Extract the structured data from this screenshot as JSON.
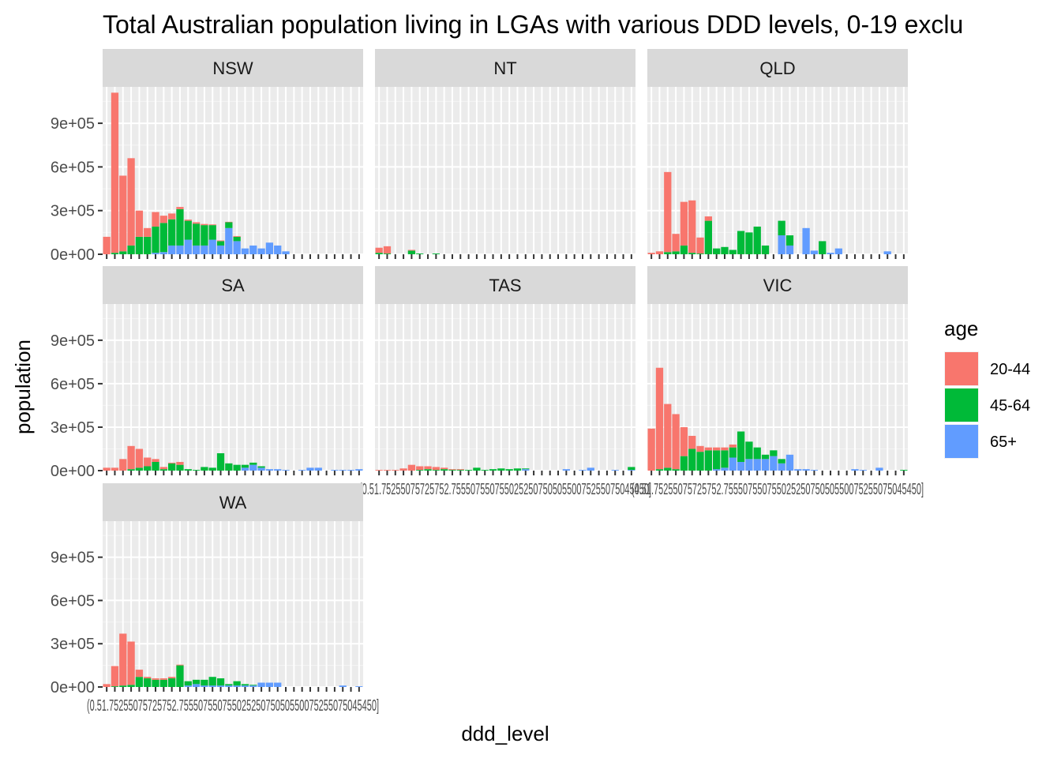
{
  "chart_data": {
    "type": "bar",
    "stacked": true,
    "faceted": true,
    "title": "Total Australian population living in LGAs with various DDD levels, 0-19 exclu",
    "xlabel": "ddd_level",
    "ylabel": "population",
    "y_ticks": [
      "0e+00",
      "3e+05",
      "6e+05",
      "9e+05"
    ],
    "y_tick_values": [
      0,
      300000,
      600000,
      900000
    ],
    "ylim": [
      0,
      1150000
    ],
    "n_categories": 32,
    "x_tick_label_overlap": "(0.51.75255075725752.75550755075502525075050550075255075045450]",
    "legend": {
      "title": "age",
      "position": "right",
      "items": [
        {
          "name": "20-44",
          "color": "#F8766D"
        },
        {
          "name": "45-64",
          "color": "#00BA38"
        },
        {
          "name": "65+",
          "color": "#619CFF"
        }
      ]
    },
    "series_order": [
      "20-44",
      "45-64",
      "65+"
    ],
    "facets": [
      {
        "label": "NSW",
        "values": {
          "20-44": [
            120000,
            1100000,
            520000,
            600000,
            180000,
            60000,
            100000,
            50000,
            40000,
            15000,
            8000,
            10000,
            8000,
            5000,
            5000,
            3000,
            5000,
            0,
            0,
            0,
            0,
            0,
            0,
            0,
            0,
            0,
            0,
            0,
            0,
            0,
            0,
            0
          ],
          "45-64": [
            0,
            10000,
            20000,
            60000,
            120000,
            120000,
            180000,
            200000,
            180000,
            250000,
            130000,
            150000,
            140000,
            100000,
            30000,
            40000,
            30000,
            0,
            0,
            0,
            0,
            0,
            0,
            0,
            0,
            0,
            0,
            0,
            0,
            0,
            0,
            0
          ],
          "65+": [
            0,
            0,
            0,
            0,
            0,
            0,
            10000,
            15000,
            60000,
            60000,
            100000,
            60000,
            60000,
            100000,
            60000,
            180000,
            90000,
            40000,
            60000,
            40000,
            80000,
            60000,
            20000,
            0,
            0,
            0,
            0,
            0,
            0,
            0,
            0,
            0
          ]
        }
      },
      {
        "label": "NT",
        "values": {
          "20-44": [
            35000,
            50000,
            0,
            0,
            5000,
            0,
            0,
            0,
            0,
            0,
            0,
            0,
            0,
            0,
            0,
            0,
            0,
            0,
            0,
            0,
            0,
            0,
            0,
            0,
            0,
            0,
            0,
            0,
            0,
            0,
            0,
            0
          ],
          "45-64": [
            10000,
            5000,
            0,
            0,
            25000,
            5000,
            0,
            5000,
            0,
            0,
            0,
            0,
            0,
            0,
            0,
            0,
            0,
            0,
            0,
            0,
            0,
            0,
            0,
            0,
            0,
            0,
            0,
            0,
            0,
            0,
            0,
            0
          ],
          "65+": [
            0,
            0,
            0,
            0,
            0,
            0,
            0,
            0,
            0,
            0,
            0,
            0,
            0,
            0,
            0,
            0,
            0,
            0,
            0,
            0,
            0,
            0,
            0,
            0,
            0,
            0,
            0,
            0,
            0,
            0,
            0,
            0
          ]
        }
      },
      {
        "label": "QLD",
        "values": {
          "20-44": [
            10000,
            20000,
            550000,
            120000,
            300000,
            360000,
            110000,
            30000,
            0,
            0,
            0,
            0,
            0,
            0,
            0,
            0,
            0,
            0,
            0,
            0,
            0,
            0,
            0,
            0,
            0,
            0,
            0,
            0,
            0,
            0,
            0,
            0
          ],
          "45-64": [
            0,
            0,
            15000,
            20000,
            60000,
            10000,
            5000,
            230000,
            40000,
            50000,
            30000,
            160000,
            150000,
            190000,
            60000,
            0,
            100000,
            70000,
            0,
            0,
            0,
            90000,
            0,
            0,
            0,
            0,
            0,
            0,
            0,
            0,
            0,
            0
          ],
          "65+": [
            0,
            0,
            0,
            0,
            0,
            0,
            0,
            0,
            0,
            0,
            0,
            0,
            0,
            0,
            0,
            0,
            130000,
            60000,
            0,
            180000,
            25000,
            0,
            10000,
            40000,
            0,
            0,
            0,
            0,
            0,
            20000,
            0,
            0
          ]
        }
      },
      {
        "label": "SA",
        "values": {
          "20-44": [
            20000,
            20000,
            80000,
            160000,
            130000,
            60000,
            20000,
            15000,
            5000,
            20000,
            0,
            0,
            0,
            0,
            0,
            0,
            0,
            0,
            0,
            0,
            0,
            0,
            0,
            0,
            0,
            0,
            0,
            0,
            0,
            0,
            0,
            0
          ],
          "45-64": [
            0,
            0,
            0,
            10000,
            20000,
            30000,
            60000,
            10000,
            50000,
            40000,
            10000,
            5000,
            25000,
            20000,
            120000,
            50000,
            40000,
            20000,
            15000,
            10000,
            0,
            0,
            0,
            0,
            0,
            0,
            0,
            0,
            0,
            0,
            0,
            0
          ],
          "65+": [
            0,
            0,
            0,
            0,
            0,
            0,
            0,
            0,
            0,
            0,
            0,
            0,
            0,
            0,
            0,
            0,
            0,
            20000,
            40000,
            20000,
            10000,
            10000,
            5000,
            0,
            5000,
            20000,
            20000,
            0,
            5000,
            5000,
            5000,
            10000
          ]
        }
      },
      {
        "label": "TAS",
        "values": {
          "20-44": [
            5000,
            5000,
            5000,
            15000,
            40000,
            25000,
            20000,
            20000,
            10000,
            5000,
            5000,
            0,
            0,
            0,
            0,
            0,
            0,
            0,
            0,
            0,
            0,
            0,
            0,
            0,
            0,
            0,
            0,
            0,
            0,
            0,
            0,
            0
          ],
          "45-64": [
            0,
            0,
            0,
            0,
            0,
            5000,
            10000,
            5000,
            10000,
            5000,
            5000,
            5000,
            20000,
            5000,
            10000,
            15000,
            10000,
            15000,
            5000,
            0,
            0,
            0,
            0,
            0,
            0,
            0,
            0,
            0,
            0,
            0,
            0,
            20000
          ],
          "65+": [
            0,
            0,
            0,
            0,
            0,
            0,
            0,
            0,
            0,
            0,
            0,
            0,
            0,
            0,
            0,
            0,
            0,
            0,
            10000,
            0,
            0,
            0,
            0,
            10000,
            0,
            5000,
            20000,
            0,
            0,
            5000,
            0,
            5000
          ]
        }
      },
      {
        "label": "VIC",
        "values": {
          "20-44": [
            290000,
            700000,
            440000,
            380000,
            200000,
            90000,
            40000,
            20000,
            20000,
            20000,
            20000,
            0,
            0,
            0,
            0,
            0,
            0,
            0,
            0,
            0,
            0,
            0,
            0,
            0,
            0,
            0,
            0,
            0,
            0,
            0,
            0,
            0
          ],
          "45-64": [
            0,
            10000,
            20000,
            10000,
            100000,
            150000,
            130000,
            140000,
            130000,
            120000,
            70000,
            210000,
            120000,
            80000,
            30000,
            40000,
            30000,
            0,
            0,
            0,
            0,
            0,
            0,
            0,
            0,
            0,
            0,
            0,
            0,
            0,
            0,
            5000
          ],
          "65+": [
            0,
            0,
            0,
            0,
            0,
            0,
            0,
            0,
            10000,
            20000,
            90000,
            60000,
            80000,
            80000,
            80000,
            100000,
            50000,
            110000,
            10000,
            10000,
            5000,
            0,
            0,
            0,
            0,
            10000,
            5000,
            0,
            20000,
            0,
            0,
            0
          ]
        }
      },
      {
        "label": "WA",
        "values": {
          "20-44": [
            20000,
            140000,
            360000,
            300000,
            50000,
            10000,
            10000,
            10000,
            10000,
            5000,
            0,
            0,
            0,
            0,
            0,
            0,
            0,
            0,
            0,
            0,
            0,
            0,
            0,
            0,
            0,
            0,
            0,
            0,
            0,
            0,
            0,
            0
          ],
          "45-64": [
            0,
            5000,
            10000,
            15000,
            70000,
            60000,
            50000,
            50000,
            60000,
            150000,
            30000,
            30000,
            40000,
            60000,
            50000,
            10000,
            30000,
            10000,
            5000,
            0,
            0,
            0,
            0,
            0,
            0,
            0,
            0,
            0,
            0,
            0,
            0,
            0
          ],
          "65+": [
            0,
            0,
            0,
            0,
            0,
            0,
            0,
            0,
            0,
            0,
            10000,
            20000,
            10000,
            10000,
            10000,
            10000,
            10000,
            10000,
            10000,
            30000,
            30000,
            30000,
            0,
            0,
            0,
            0,
            0,
            0,
            0,
            10000,
            0,
            5000
          ]
        }
      }
    ]
  }
}
